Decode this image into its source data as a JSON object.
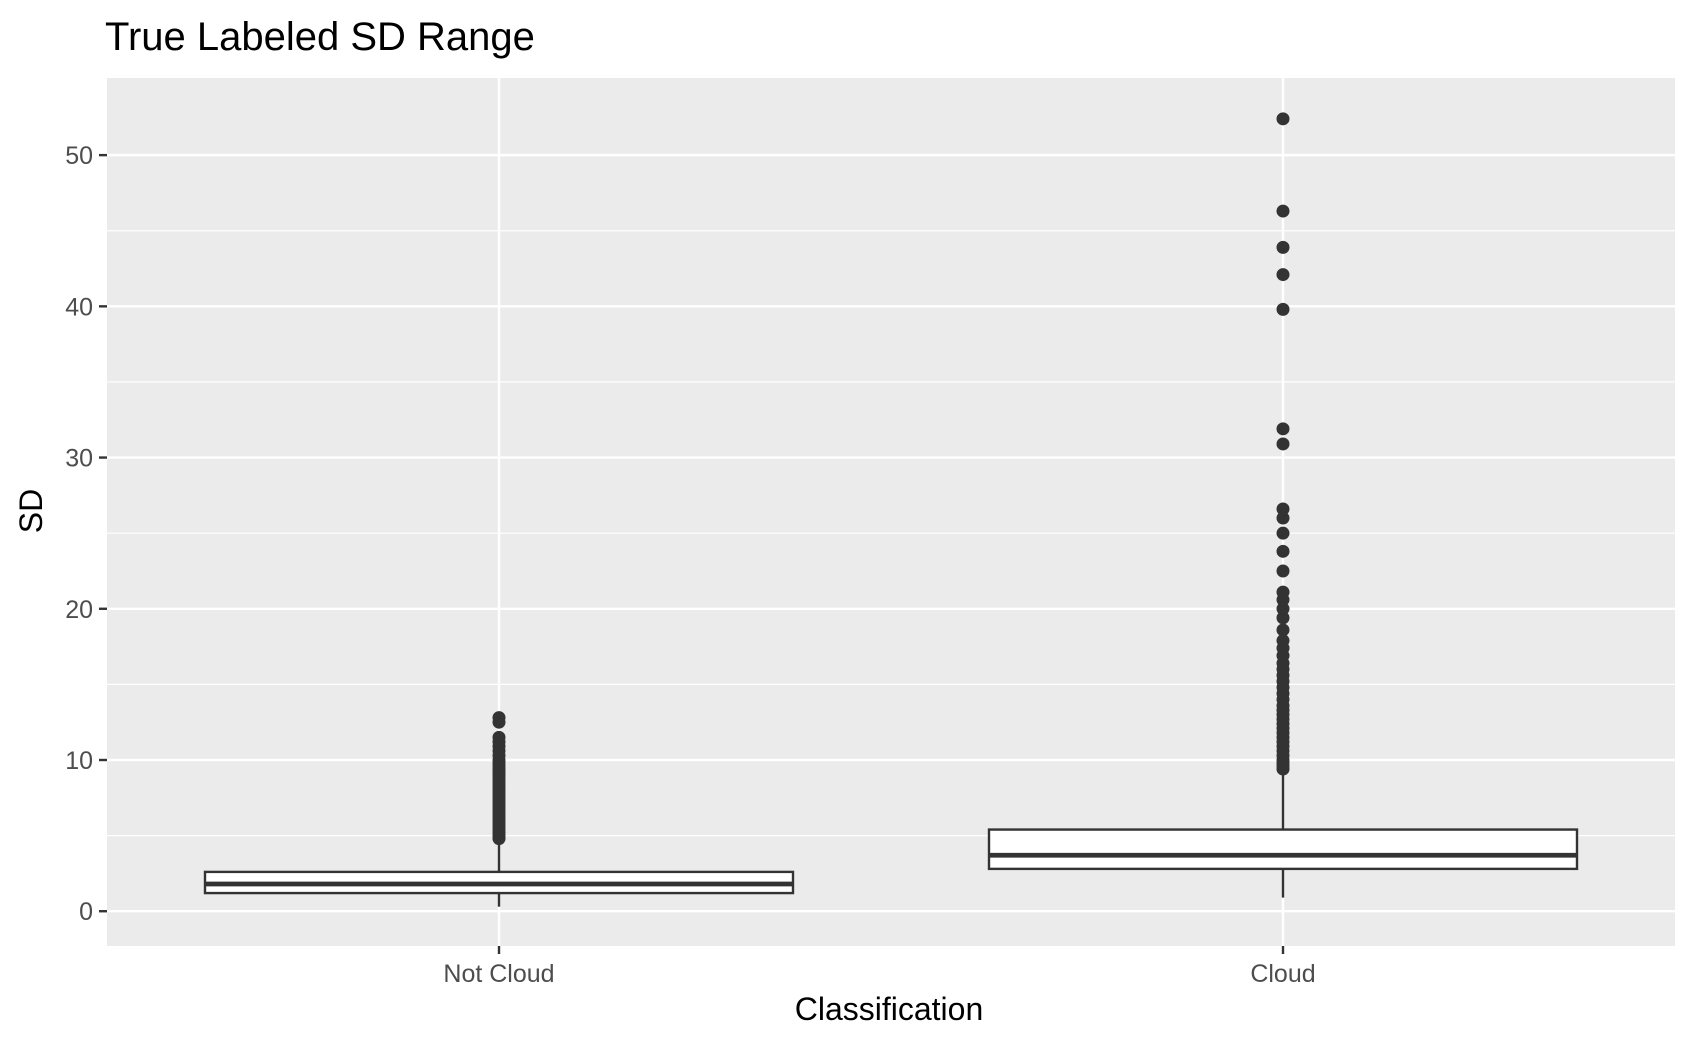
{
  "chart_data": {
    "type": "boxplot",
    "title": "True Labeled SD Range",
    "xlabel": "Classification",
    "ylabel": "SD",
    "categories": [
      "Not Cloud",
      "Cloud"
    ],
    "ylim": [
      -2.3,
      55.1
    ],
    "yticks": [
      0,
      10,
      20,
      30,
      40,
      50
    ],
    "ytick_labels": [
      "0",
      "10",
      "20",
      "30",
      "40",
      "50"
    ],
    "grid": true,
    "legend": "none",
    "colors": {
      "panel": "#ebebeb",
      "grid": "#ffffff",
      "box_line": "#333333",
      "box_fill": "#ffffff",
      "outlier": "#333333",
      "tick": "#333333"
    },
    "boxes": [
      {
        "category": "Not Cloud",
        "whisker_low": 0.3,
        "q1": 1.2,
        "median": 1.8,
        "q3": 2.6,
        "whisker_high": 4.7,
        "outliers": [
          4.8,
          5.0,
          5.2,
          5.4,
          5.6,
          5.8,
          6.0,
          6.2,
          6.4,
          6.6,
          6.8,
          7.0,
          7.2,
          7.4,
          7.6,
          7.8,
          8.0,
          8.2,
          8.4,
          8.6,
          8.8,
          9.0,
          9.2,
          9.4,
          9.6,
          9.8,
          10.0,
          10.3,
          10.6,
          10.9,
          11.2,
          11.5,
          12.5,
          12.8
        ]
      },
      {
        "category": "Cloud",
        "whisker_low": 0.9,
        "q1": 2.8,
        "median": 3.7,
        "q3": 5.4,
        "whisker_high": 9.3,
        "outliers": [
          9.4,
          9.6,
          9.8,
          10.0,
          10.3,
          10.6,
          10.9,
          11.2,
          11.5,
          11.8,
          12.1,
          12.4,
          12.7,
          13.0,
          13.3,
          13.6,
          14.0,
          14.4,
          14.8,
          15.2,
          15.6,
          16.0,
          16.4,
          16.9,
          17.4,
          17.9,
          18.6,
          19.4,
          20.0,
          20.6,
          21.1,
          22.5,
          23.8,
          25.0,
          26.0,
          26.6,
          30.9,
          31.9,
          39.8,
          42.1,
          43.9,
          46.3,
          52.4
        ]
      }
    ]
  }
}
